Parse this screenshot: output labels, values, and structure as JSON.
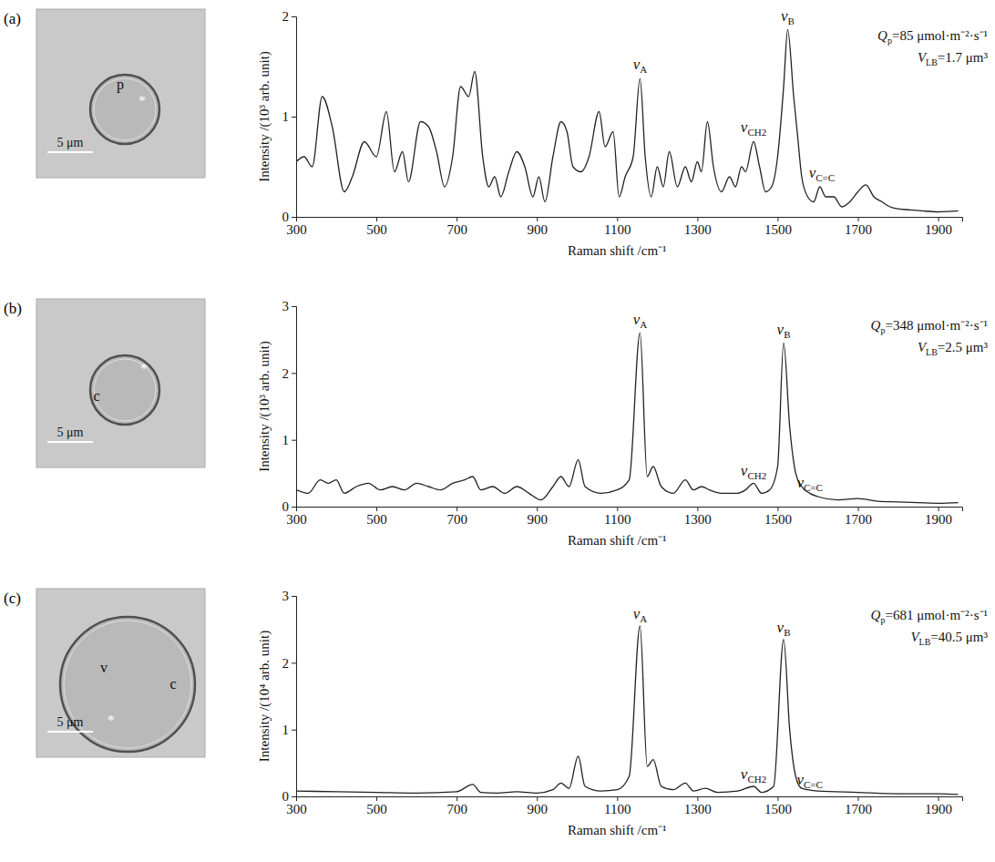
{
  "chart_data": [
    {
      "type": "line",
      "panel": "(a)",
      "micrograph": {
        "labels": [
          "p",
          "*"
        ],
        "scale_bar": "5 μm"
      },
      "x_label": "Raman shift /cm⁻¹",
      "y_label": "Intensity /(10³ arb. unit)",
      "color": "#222222",
      "x": [
        300,
        320,
        340,
        365,
        390,
        420,
        440,
        470,
        500,
        525,
        545,
        565,
        580,
        610,
        630,
        650,
        670,
        690,
        710,
        730,
        745,
        765,
        780,
        795,
        810,
        830,
        850,
        870,
        890,
        905,
        920,
        940,
        960,
        975,
        990,
        1010,
        1030,
        1055,
        1070,
        1090,
        1105,
        1120,
        1140,
        1157,
        1170,
        1185,
        1200,
        1215,
        1230,
        1250,
        1270,
        1285,
        1300,
        1310,
        1325,
        1340,
        1360,
        1380,
        1395,
        1410,
        1420,
        1440,
        1455,
        1470,
        1485,
        1500,
        1515,
        1525,
        1540,
        1550,
        1560,
        1575,
        1590,
        1605,
        1620,
        1640,
        1660,
        1680,
        1700,
        1720,
        1740,
        1760,
        1780,
        1800,
        1830,
        1860,
        1900,
        1950
      ],
      "values": [
        0.55,
        0.6,
        0.5,
        1.2,
        0.9,
        0.25,
        0.4,
        0.75,
        0.6,
        1.05,
        0.45,
        0.65,
        0.35,
        0.95,
        0.9,
        0.65,
        0.3,
        0.6,
        1.3,
        1.2,
        1.45,
        0.6,
        0.3,
        0.4,
        0.2,
        0.45,
        0.65,
        0.5,
        0.2,
        0.4,
        0.15,
        0.6,
        0.95,
        0.85,
        0.5,
        0.45,
        0.6,
        1.05,
        0.7,
        0.85,
        0.2,
        0.4,
        0.6,
        1.38,
        0.6,
        0.2,
        0.5,
        0.3,
        0.65,
        0.3,
        0.5,
        0.35,
        0.55,
        0.45,
        0.95,
        0.5,
        0.25,
        0.4,
        0.3,
        0.5,
        0.45,
        0.75,
        0.5,
        0.25,
        0.3,
        0.6,
        1.3,
        1.87,
        1.2,
        0.8,
        0.4,
        0.2,
        0.15,
        0.3,
        0.2,
        0.2,
        0.1,
        0.15,
        0.25,
        0.32,
        0.2,
        0.15,
        0.1,
        0.08,
        0.07,
        0.06,
        0.05,
        0.06
      ],
      "xlim": [
        300,
        1960
      ],
      "xticks": [
        300,
        500,
        700,
        900,
        1100,
        1300,
        1500,
        1700,
        1900
      ],
      "ylim": [
        0,
        2
      ],
      "yticks": [
        0,
        1,
        2
      ],
      "annotations": [
        {
          "text": "ν",
          "sub": "A",
          "x": 1157,
          "y": 1.45
        },
        {
          "text": "ν",
          "sub": "B",
          "x": 1525,
          "y": 1.93
        },
        {
          "text": "ν",
          "sub": "CH2",
          "x": 1440,
          "y": 0.82
        },
        {
          "text": "ν",
          "sub": "C=C",
          "x": 1610,
          "y": 0.36
        }
      ],
      "info": [
        {
          "symbol": "Q",
          "sub": "p",
          "text": "=85 μmol·m⁻²·s⁻¹"
        },
        {
          "symbol": "V",
          "sub": "LB",
          "text": "=1.7 μm³"
        }
      ]
    },
    {
      "type": "line",
      "panel": "(b)",
      "micrograph": {
        "labels": [
          "c",
          "*"
        ],
        "scale_bar": "5 μm"
      },
      "x_label": "Raman shift /cm⁻¹",
      "y_label": "Intensity /(10³ arb. unit)",
      "color": "#222222",
      "x": [
        300,
        330,
        360,
        380,
        400,
        420,
        450,
        480,
        510,
        540,
        570,
        600,
        630,
        660,
        690,
        720,
        740,
        760,
        790,
        820,
        850,
        880,
        910,
        940,
        960,
        980,
        1003,
        1020,
        1060,
        1100,
        1130,
        1157,
        1175,
        1190,
        1210,
        1240,
        1270,
        1290,
        1310,
        1330,
        1360,
        1400,
        1420,
        1440,
        1460,
        1480,
        1500,
        1515,
        1530,
        1545,
        1560,
        1580,
        1600,
        1650,
        1700,
        1750,
        1800,
        1850,
        1900,
        1950
      ],
      "values": [
        0.25,
        0.2,
        0.4,
        0.35,
        0.4,
        0.2,
        0.3,
        0.35,
        0.25,
        0.3,
        0.25,
        0.35,
        0.3,
        0.25,
        0.35,
        0.4,
        0.45,
        0.25,
        0.3,
        0.2,
        0.3,
        0.2,
        0.1,
        0.3,
        0.45,
        0.3,
        0.7,
        0.3,
        0.2,
        0.25,
        0.4,
        2.6,
        0.45,
        0.6,
        0.3,
        0.2,
        0.4,
        0.25,
        0.3,
        0.25,
        0.2,
        0.2,
        0.25,
        0.35,
        0.2,
        0.25,
        0.6,
        2.45,
        1.2,
        0.5,
        0.3,
        0.2,
        0.15,
        0.1,
        0.12,
        0.08,
        0.07,
        0.06,
        0.05,
        0.06
      ],
      "xlim": [
        300,
        1960
      ],
      "xticks": [
        300,
        500,
        700,
        900,
        1100,
        1300,
        1500,
        1700,
        1900
      ],
      "ylim": [
        0,
        3
      ],
      "yticks": [
        0,
        1,
        2,
        3
      ],
      "annotations": [
        {
          "text": "ν",
          "sub": "A",
          "x": 1157,
          "y": 2.68
        },
        {
          "text": "ν",
          "sub": "B",
          "x": 1515,
          "y": 2.53
        },
        {
          "text": "ν",
          "sub": "CH2",
          "x": 1440,
          "y": 0.42
        },
        {
          "text": "ν",
          "sub": "C=C",
          "x": 1580,
          "y": 0.24
        }
      ],
      "info": [
        {
          "symbol": "Q",
          "sub": "p",
          "text": "=348 μmol·m⁻²·s⁻¹"
        },
        {
          "symbol": "V",
          "sub": "LB",
          "text": "=2.5 μm³"
        }
      ]
    },
    {
      "type": "line",
      "panel": "(c)",
      "micrograph": {
        "labels": [
          "v",
          "c",
          "*"
        ],
        "scale_bar": "5 μm"
      },
      "x_label": "Raman shift /cm⁻¹",
      "y_label": "Intensity /(10⁴ arb. unit)",
      "color": "#222222",
      "x": [
        300,
        400,
        500,
        600,
        700,
        740,
        760,
        800,
        850,
        900,
        940,
        960,
        980,
        1003,
        1020,
        1060,
        1100,
        1130,
        1157,
        1175,
        1190,
        1210,
        1240,
        1270,
        1290,
        1320,
        1350,
        1400,
        1440,
        1460,
        1490,
        1515,
        1530,
        1545,
        1560,
        1600,
        1700,
        1800,
        1900,
        1950
      ],
      "values": [
        0.08,
        0.07,
        0.06,
        0.05,
        0.07,
        0.18,
        0.06,
        0.05,
        0.07,
        0.05,
        0.1,
        0.2,
        0.12,
        0.6,
        0.15,
        0.08,
        0.1,
        0.3,
        2.55,
        0.45,
        0.55,
        0.15,
        0.1,
        0.2,
        0.08,
        0.12,
        0.06,
        0.08,
        0.15,
        0.06,
        0.15,
        2.35,
        1.0,
        0.3,
        0.12,
        0.08,
        0.06,
        0.04,
        0.04,
        0.03
      ],
      "xlim": [
        300,
        1960
      ],
      "xticks": [
        300,
        500,
        700,
        900,
        1100,
        1300,
        1500,
        1700,
        1900
      ],
      "ylim": [
        0,
        3
      ],
      "yticks": [
        0,
        1,
        2,
        3
      ],
      "annotations": [
        {
          "text": "ν",
          "sub": "A",
          "x": 1157,
          "y": 2.62
        },
        {
          "text": "ν",
          "sub": "B",
          "x": 1515,
          "y": 2.42
        },
        {
          "text": "ν",
          "sub": "CH2",
          "x": 1440,
          "y": 0.22
        },
        {
          "text": "ν",
          "sub": "C=C",
          "x": 1580,
          "y": 0.14
        }
      ],
      "info": [
        {
          "symbol": "Q",
          "sub": "p",
          "text": "=681 μmol·m⁻²·s⁻¹"
        },
        {
          "symbol": "V",
          "sub": "LB",
          "text": "=40.5 μm³"
        }
      ]
    }
  ]
}
